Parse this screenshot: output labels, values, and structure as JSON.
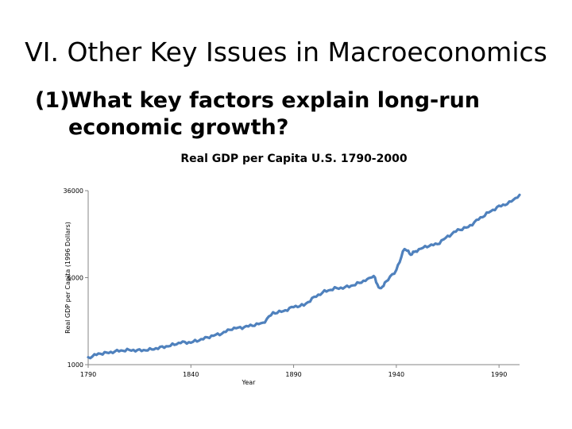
{
  "slide": {
    "title": "VI.  Other Key Issues in Macroeconomics",
    "question_number": "(1)",
    "question_text": "What key factors explain long-run economic growth?"
  },
  "chart_data": {
    "type": "line",
    "title": "Real GDP per Capita U.S. 1790-2000",
    "xlabel": "Year",
    "ylabel": "Real GDP per Capita (1996 Dollars)",
    "yscale": "log",
    "xlim": [
      1790,
      2000
    ],
    "ylim": [
      1000,
      36000
    ],
    "x_ticks": [
      1790,
      1840,
      1890,
      1940,
      1990
    ],
    "y_ticks": [
      1000,
      6000,
      36000
    ],
    "grid": false,
    "line_color": "#4f81bd",
    "series": [
      {
        "x": [
          1790,
          1795,
          1800,
          1805,
          1810,
          1815,
          1820,
          1825,
          1830,
          1835,
          1840,
          1845,
          1850,
          1855,
          1860,
          1865,
          1870,
          1875,
          1880,
          1885,
          1890,
          1895,
          1900,
          1905,
          1910,
          1915,
          1920,
          1925,
          1929,
          1932,
          1935,
          1940,
          1944,
          1947,
          1950,
          1955,
          1960,
          1965,
          1970,
          1975,
          1980,
          1985,
          1990,
          1995,
          2000
        ],
        "y": [
          1150,
          1250,
          1280,
          1330,
          1350,
          1340,
          1360,
          1420,
          1480,
          1580,
          1580,
          1680,
          1800,
          1900,
          2100,
          2150,
          2250,
          2350,
          2900,
          3000,
          3300,
          3400,
          4000,
          4500,
          4800,
          4900,
          5200,
          5700,
          6200,
          4700,
          5500,
          7000,
          11000,
          9700,
          10500,
          11500,
          12000,
          14000,
          16000,
          17000,
          20000,
          23000,
          26000,
          28000,
          33000
        ]
      }
    ]
  }
}
